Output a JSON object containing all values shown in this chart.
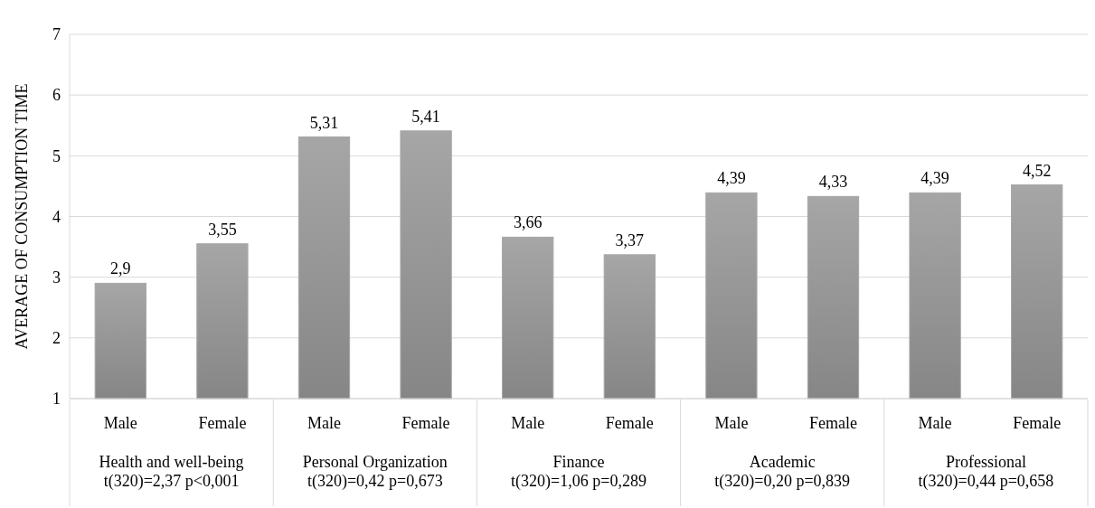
{
  "chart_data": {
    "type": "bar",
    "ylabel": "AVERAGE OF CONSUMPTION TIME",
    "categories": [
      "Male",
      "Female",
      "Male",
      "Female",
      "Male",
      "Female",
      "Male",
      "Female",
      "Male",
      "Female"
    ],
    "values": [
      2.9,
      3.55,
      5.31,
      5.41,
      3.66,
      3.37,
      4.39,
      4.33,
      4.39,
      4.52
    ],
    "value_labels": [
      "2,9",
      "3,55",
      "5,31",
      "5,41",
      "3,66",
      "3,37",
      "4,39",
      "4,33",
      "4,39",
      "4,52"
    ],
    "color": "#a6a6a6",
    "ylim": [
      1,
      7
    ],
    "yticks": [
      1,
      2,
      3,
      4,
      5,
      6,
      7
    ],
    "grid": "y",
    "annotations": [
      "Health and well-being\nt(320)=2,37 p<0,001",
      "Personal Organization\nt(320)=0,42 p=0,673",
      "Finance\nt(320)=1,06 p=0,289",
      "Academic\nt(320)=0,20 p=0,839",
      "Professional\nt(320)=0,44 p=0,658"
    ]
  }
}
